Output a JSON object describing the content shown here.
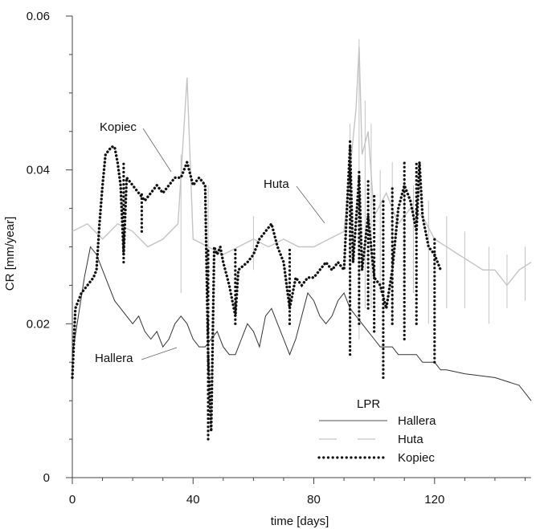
{
  "chart_data": {
    "type": "line",
    "title": "",
    "xlabel": "time [days]",
    "ylabel": "CR [mm/year]",
    "xlim": [
      0,
      152
    ],
    "ylim": [
      0,
      0.06
    ],
    "x_ticks": [
      0,
      40,
      80,
      120
    ],
    "y_ticks": [
      0,
      0.02,
      0.04,
      0.06
    ],
    "x_tick_labels": [
      "0",
      "40",
      "80",
      "120"
    ],
    "y_tick_labels": [
      "0",
      "0.02",
      "0.04",
      "0.06"
    ],
    "grid": false,
    "legend": {
      "title": "LPR",
      "placement": "bottom-right",
      "entries": [
        "Hallera",
        "Huta",
        "Kopiec"
      ]
    },
    "annotations": [
      {
        "text": "Kopiec",
        "series": "Kopiec"
      },
      {
        "text": "Huta",
        "series": "Huta"
      },
      {
        "text": "Hallera",
        "series": "Hallera"
      }
    ],
    "series": [
      {
        "name": "Hallera",
        "style": "thin solid dark",
        "color": "#333333",
        "points": [
          [
            0,
            0.016
          ],
          [
            2,
            0.021
          ],
          [
            4,
            0.026
          ],
          [
            6,
            0.03
          ],
          [
            8,
            0.029
          ],
          [
            10,
            0.027
          ],
          [
            12,
            0.025
          ],
          [
            14,
            0.023
          ],
          [
            16,
            0.022
          ],
          [
            18,
            0.021
          ],
          [
            20,
            0.02
          ],
          [
            22,
            0.021
          ],
          [
            24,
            0.019
          ],
          [
            26,
            0.018
          ],
          [
            28,
            0.019
          ],
          [
            30,
            0.017
          ],
          [
            32,
            0.018
          ],
          [
            34,
            0.02
          ],
          [
            36,
            0.021
          ],
          [
            38,
            0.02
          ],
          [
            40,
            0.018
          ],
          [
            42,
            0.017
          ],
          [
            44,
            0.017
          ],
          [
            46,
            0.018
          ],
          [
            48,
            0.019
          ],
          [
            50,
            0.017
          ],
          [
            52,
            0.016
          ],
          [
            54,
            0.016
          ],
          [
            56,
            0.018
          ],
          [
            58,
            0.02
          ],
          [
            60,
            0.019
          ],
          [
            62,
            0.017
          ],
          [
            64,
            0.021
          ],
          [
            66,
            0.022
          ],
          [
            68,
            0.02
          ],
          [
            70,
            0.018
          ],
          [
            72,
            0.016
          ],
          [
            74,
            0.018
          ],
          [
            76,
            0.021
          ],
          [
            78,
            0.024
          ],
          [
            80,
            0.023
          ],
          [
            82,
            0.021
          ],
          [
            84,
            0.02
          ],
          [
            86,
            0.021
          ],
          [
            88,
            0.023
          ],
          [
            90,
            0.024
          ],
          [
            92,
            0.022
          ],
          [
            94,
            0.021
          ],
          [
            96,
            0.02
          ],
          [
            98,
            0.019
          ],
          [
            100,
            0.018
          ],
          [
            102,
            0.017
          ],
          [
            104,
            0.017
          ],
          [
            106,
            0.017
          ],
          [
            108,
            0.016
          ],
          [
            110,
            0.016
          ],
          [
            112,
            0.016
          ],
          [
            114,
            0.016
          ],
          [
            116,
            0.015
          ],
          [
            118,
            0.015
          ],
          [
            120,
            0.015
          ],
          [
            122,
            0.014
          ],
          [
            124,
            0.014
          ],
          [
            130,
            0.0135
          ],
          [
            140,
            0.013
          ],
          [
            148,
            0.012
          ],
          [
            150,
            0.011
          ],
          [
            152,
            0.01
          ]
        ]
      },
      {
        "name": "Huta",
        "style": "light gray with dense spikes",
        "color": "#c4c4c4",
        "points": [
          [
            0,
            0.032
          ],
          [
            5,
            0.033
          ],
          [
            10,
            0.031
          ],
          [
            15,
            0.033
          ],
          [
            20,
            0.032
          ],
          [
            25,
            0.03
          ],
          [
            30,
            0.031
          ],
          [
            35,
            0.033
          ],
          [
            38,
            0.052
          ],
          [
            40,
            0.031
          ],
          [
            45,
            0.03
          ],
          [
            50,
            0.029
          ],
          [
            55,
            0.03
          ],
          [
            60,
            0.031
          ],
          [
            65,
            0.03
          ],
          [
            70,
            0.031
          ],
          [
            75,
            0.03
          ],
          [
            80,
            0.03
          ],
          [
            85,
            0.031
          ],
          [
            90,
            0.032
          ],
          [
            92,
            0.04
          ],
          [
            94,
            0.048
          ],
          [
            95,
            0.056
          ],
          [
            96,
            0.042
          ],
          [
            98,
            0.045
          ],
          [
            100,
            0.034
          ],
          [
            104,
            0.037
          ],
          [
            108,
            0.033
          ],
          [
            112,
            0.035
          ],
          [
            116,
            0.034
          ],
          [
            120,
            0.031
          ],
          [
            124,
            0.03
          ],
          [
            128,
            0.029
          ],
          [
            132,
            0.028
          ],
          [
            136,
            0.027
          ],
          [
            140,
            0.027
          ],
          [
            144,
            0.025
          ],
          [
            148,
            0.027
          ],
          [
            152,
            0.028
          ]
        ],
        "spikes": [
          [
            36,
            0.024,
            0.042
          ],
          [
            45,
            0.025,
            0.038
          ],
          [
            60,
            0.027,
            0.034
          ],
          [
            92,
            0.02,
            0.046
          ],
          [
            95,
            0.018,
            0.057
          ],
          [
            97,
            0.022,
            0.049
          ],
          [
            99,
            0.022,
            0.046
          ],
          [
            102,
            0.024,
            0.04
          ],
          [
            106,
            0.02,
            0.041
          ],
          [
            110,
            0.026,
            0.039
          ],
          [
            113,
            0.024,
            0.038
          ],
          [
            118,
            0.02,
            0.036
          ],
          [
            124,
            0.022,
            0.034
          ],
          [
            130,
            0.022,
            0.032
          ],
          [
            138,
            0.02,
            0.03
          ],
          [
            144,
            0.022,
            0.029
          ],
          [
            150,
            0.023,
            0.03
          ]
        ]
      },
      {
        "name": "Kopiec",
        "style": "dotted black",
        "color": "#111111",
        "points": [
          [
            0,
            0.013
          ],
          [
            1,
            0.022
          ],
          [
            3,
            0.024
          ],
          [
            5,
            0.025
          ],
          [
            7,
            0.026
          ],
          [
            8,
            0.027
          ],
          [
            9,
            0.033
          ],
          [
            10,
            0.038
          ],
          [
            11,
            0.042
          ],
          [
            13,
            0.043
          ],
          [
            14,
            0.043
          ],
          [
            15,
            0.041
          ],
          [
            16,
            0.038
          ],
          [
            17,
            0.029
          ],
          [
            18,
            0.039
          ],
          [
            20,
            0.038
          ],
          [
            22,
            0.037
          ],
          [
            24,
            0.036
          ],
          [
            26,
            0.037
          ],
          [
            28,
            0.038
          ],
          [
            30,
            0.037
          ],
          [
            32,
            0.038
          ],
          [
            34,
            0.039
          ],
          [
            36,
            0.039
          ],
          [
            38,
            0.041
          ],
          [
            40,
            0.038
          ],
          [
            42,
            0.039
          ],
          [
            44,
            0.038
          ],
          [
            45,
            0.016
          ],
          [
            46,
            0.006
          ],
          [
            47,
            0.03
          ],
          [
            48,
            0.029
          ],
          [
            49,
            0.03
          ],
          [
            50,
            0.028
          ],
          [
            52,
            0.025
          ],
          [
            54,
            0.021
          ],
          [
            55,
            0.027
          ],
          [
            58,
            0.028
          ],
          [
            60,
            0.029
          ],
          [
            62,
            0.031
          ],
          [
            64,
            0.032
          ],
          [
            66,
            0.033
          ],
          [
            68,
            0.03
          ],
          [
            70,
            0.028
          ],
          [
            72,
            0.022
          ],
          [
            74,
            0.026
          ],
          [
            76,
            0.025
          ],
          [
            78,
            0.026
          ],
          [
            80,
            0.026
          ],
          [
            82,
            0.027
          ],
          [
            84,
            0.028
          ],
          [
            86,
            0.027
          ],
          [
            88,
            0.028
          ],
          [
            90,
            0.027
          ],
          [
            91,
            0.035
          ],
          [
            92,
            0.043
          ],
          [
            93,
            0.028
          ],
          [
            95,
            0.039
          ],
          [
            96,
            0.027
          ],
          [
            98,
            0.034
          ],
          [
            100,
            0.026
          ],
          [
            102,
            0.025
          ],
          [
            104,
            0.022
          ],
          [
            106,
            0.027
          ],
          [
            108,
            0.035
          ],
          [
            110,
            0.038
          ],
          [
            112,
            0.036
          ],
          [
            114,
            0.032
          ],
          [
            115,
            0.041
          ],
          [
            116,
            0.034
          ],
          [
            118,
            0.03
          ],
          [
            120,
            0.029
          ],
          [
            122,
            0.027
          ]
        ],
        "spikes": [
          [
            17,
            0.028,
            0.041
          ],
          [
            23,
            0.032,
            0.037
          ],
          [
            45,
            0.005,
            0.03
          ],
          [
            54,
            0.02,
            0.03
          ],
          [
            72,
            0.02,
            0.03
          ],
          [
            92,
            0.016,
            0.044
          ],
          [
            95,
            0.02,
            0.04
          ],
          [
            98,
            0.022,
            0.039
          ],
          [
            100,
            0.019,
            0.037
          ],
          [
            103,
            0.013,
            0.036
          ],
          [
            106,
            0.02,
            0.038
          ],
          [
            110,
            0.018,
            0.041
          ],
          [
            114,
            0.02,
            0.041
          ],
          [
            120,
            0.015,
            0.031
          ]
        ]
      }
    ]
  }
}
